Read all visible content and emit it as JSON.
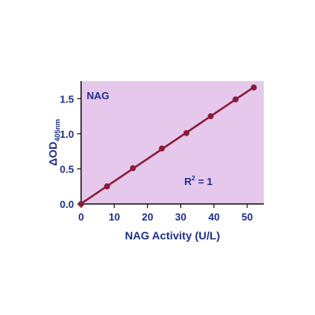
{
  "chart_data": {
    "type": "scatter",
    "title": "NAG",
    "xlabel": "NAG Activity (U/L)",
    "ylabel_main": "ΔOD",
    "ylabel_sub": "405nm",
    "annotation": {
      "text_main": "R",
      "text_sup": "2",
      "text_rest": " = 1"
    },
    "xlim": [
      0,
      55
    ],
    "ylim": [
      0,
      1.75
    ],
    "x_ticks": [
      0,
      10,
      20,
      30,
      40,
      50
    ],
    "x_tick_labels": [
      "0",
      "10",
      "20",
      "30",
      "40",
      "50"
    ],
    "y_ticks": [
      0,
      0.5,
      1.0,
      1.5
    ],
    "y_tick_labels": [
      "0.0",
      "0.5",
      "1.0",
      "1.5"
    ],
    "grid": false,
    "series": [
      {
        "x": [
          0,
          7.8,
          15.6,
          24.3,
          31.7,
          39.0,
          46.5,
          52.0
        ],
        "y": [
          0.0,
          0.25,
          0.51,
          0.79,
          1.01,
          1.25,
          1.49,
          1.66
        ],
        "fit": "linear"
      }
    ],
    "colors": {
      "plot_background": "#e6c8ec",
      "series": "#8b1a3a",
      "text": "#1f2f8a",
      "axis": "#111111"
    }
  }
}
